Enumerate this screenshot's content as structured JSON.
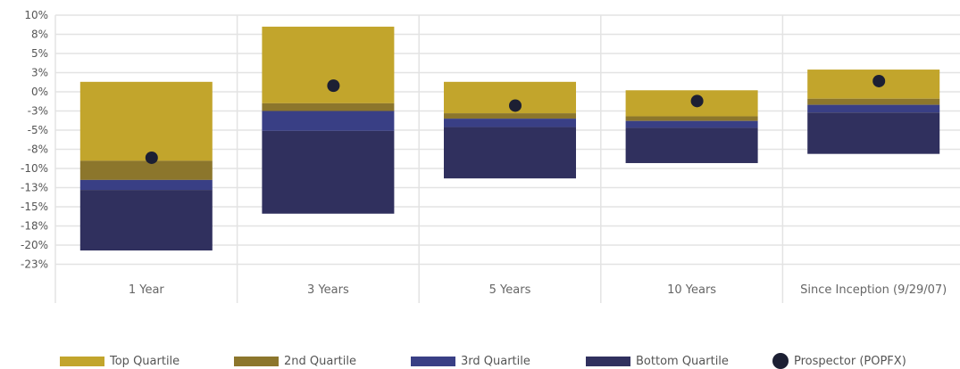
{
  "chart_data": {
    "type": "bar",
    "subtype": "floating-quartile-range",
    "categories": [
      "1 Year",
      "3 Years",
      "5 Years",
      "10 Years",
      "Since Inception (9/29/07)"
    ],
    "y_ticks": [
      "10%",
      "8%",
      "5%",
      "3%",
      "0%",
      "-3%",
      "-5%",
      "-8%",
      "-10%",
      "-13%",
      "-15%",
      "-18%",
      "-20%",
      "-23%"
    ],
    "ylim": [
      -22.5,
      10
    ],
    "grid": true,
    "legend_position": "bottom",
    "series": [
      {
        "name": "Top Quartile",
        "color": "#c2a52c",
        "ranges": [
          [
            -9.0,
            1.3
          ],
          [
            -1.5,
            8.5
          ],
          [
            -2.8,
            1.3
          ],
          [
            -3.2,
            0.2
          ],
          [
            -0.9,
            2.9
          ]
        ]
      },
      {
        "name": "2nd Quartile",
        "color": "#8c762c",
        "ranges": [
          [
            -11.5,
            -9.0
          ],
          [
            -2.5,
            -1.5
          ],
          [
            -3.5,
            -2.8
          ],
          [
            -3.8,
            -3.2
          ],
          [
            -1.7,
            -0.9
          ]
        ]
      },
      {
        "name": "3rd Quartile",
        "color": "#393f85",
        "ranges": [
          [
            -12.8,
            -11.5
          ],
          [
            -5.1,
            -2.5
          ],
          [
            -4.6,
            -3.5
          ],
          [
            -4.7,
            -3.8
          ],
          [
            -2.7,
            -1.7
          ]
        ]
      },
      {
        "name": "Bottom Quartile",
        "color": "#30305e",
        "ranges": [
          [
            -20.7,
            -12.8
          ],
          [
            -15.9,
            -5.1
          ],
          [
            -11.3,
            -4.6
          ],
          [
            -9.3,
            -4.7
          ],
          [
            -8.1,
            -2.7
          ]
        ]
      }
    ],
    "points": {
      "name": "Prospector (POPFX)",
      "color": "#1c1f33",
      "values": [
        -8.6,
        0.8,
        -1.8,
        -1.2,
        1.4
      ]
    }
  }
}
